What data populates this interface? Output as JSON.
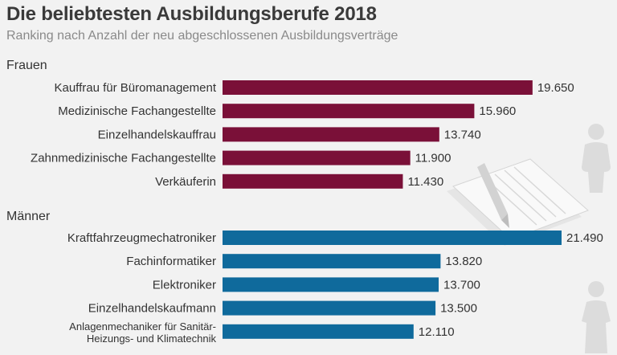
{
  "header": {
    "title": "Die beliebtesten Ausbildungsberufe 2018",
    "subtitle": "Ranking nach Anzahl der neu abgeschlossenen Ausbildungsverträge"
  },
  "chart_data": {
    "type": "bar",
    "orientation": "horizontal",
    "title": "Die beliebtesten Ausbildungsberufe 2018",
    "subtitle": "Ranking nach Anzahl der neu abgeschlossenen Ausbildungsverträge",
    "xlabel": "",
    "ylabel": "",
    "xlim": [
      0,
      22000
    ],
    "grid": false,
    "series": [
      {
        "name": "Frauen",
        "color": "#7a1038",
        "categories": [
          "Kauffrau für Büromanagement",
          "Medizinische Fachangestellte",
          "Einzelhandelskauffrau",
          "Zahnmedizinische Fachangestellte",
          "Verkäuferin"
        ],
        "values": [
          19650,
          15960,
          13740,
          11900,
          11430
        ],
        "value_labels": [
          "19.650",
          "15.960",
          "13.740",
          "11.900",
          "11.430"
        ]
      },
      {
        "name": "Männer",
        "color": "#0f6a9c",
        "categories": [
          "Kraftfahrzeugmechatroniker",
          "Fachinformatiker",
          "Elektroniker",
          "Einzelhandelskaufmann",
          "Anlagenmechaniker für Sanitär-\nHeizungs- und Klimatechnik"
        ],
        "values": [
          21490,
          13820,
          13700,
          13500,
          12110
        ],
        "value_labels": [
          "21.490",
          "13.820",
          "13.700",
          "13.500",
          "12.110"
        ]
      }
    ]
  }
}
